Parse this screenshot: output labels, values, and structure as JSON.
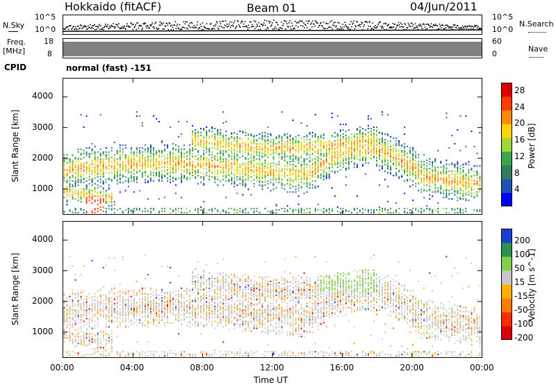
{
  "header": {
    "station": "Hokkaido (fitACF)",
    "beam": "Beam 01",
    "date": "04/Jun/2011"
  },
  "strip_noise": {
    "left_label": "N.Sky",
    "right_label": "N.Search",
    "left_ticks": [
      "10^5",
      "10^0"
    ],
    "right_ticks": [
      "10^5",
      "10^0"
    ]
  },
  "strip_freq": {
    "left_label_top": "Freq.",
    "left_label_bottom": "[MHz]",
    "left_ticks": [
      "18",
      "8"
    ],
    "right_label": "Nave",
    "right_ticks": [
      "60",
      "0"
    ]
  },
  "cpid": {
    "label": "CPID",
    "value": "normal (fast) -151"
  },
  "colors": {
    "power_scale": [
      "#0000ff",
      "#1f4fb8",
      "#2e7d5b",
      "#3aa64c",
      "#9fd63a",
      "#ffd400",
      "#ff8a00",
      "#ff3b00",
      "#e00000"
    ],
    "velocity_scale": [
      "#1a3fd0",
      "#2f8f4f",
      "#7fd04a",
      "#c7c7c7",
      "#ffb000",
      "#ff7a00",
      "#ff2a00",
      "#e00000"
    ]
  },
  "chart_data": [
    {
      "type": "heatmap",
      "name": "power",
      "xlabel": "Time UT",
      "ylabel": "Slant Range [km]",
      "x_ticks": [
        "00:00",
        "04:00",
        "08:00",
        "12:00",
        "16:00",
        "20:00",
        "00:00"
      ],
      "y_ticks": [
        "1000",
        "2000",
        "3000",
        "4000"
      ],
      "ylim": [
        180,
        4600
      ],
      "colorbar_label": "Power [dB]",
      "colorbar_ticks": [
        "4",
        "8",
        "12",
        "16",
        "20",
        "24",
        "28"
      ],
      "colorbar_range": [
        0,
        30
      ]
    },
    {
      "type": "heatmap",
      "name": "velocity",
      "xlabel": "Time UT",
      "ylabel": "Slant Range [km]",
      "x_ticks": [
        "00:00",
        "04:00",
        "08:00",
        "12:00",
        "16:00",
        "20:00",
        "00:00"
      ],
      "y_ticks": [
        "1000",
        "2000",
        "3000",
        "4000"
      ],
      "ylim": [
        180,
        4600
      ],
      "colorbar_label": "Velocity [m s^-1]",
      "colorbar_ticks": [
        "200",
        "100",
        "50",
        "15",
        "-15",
        "-50",
        "-100",
        "-200"
      ]
    }
  ]
}
